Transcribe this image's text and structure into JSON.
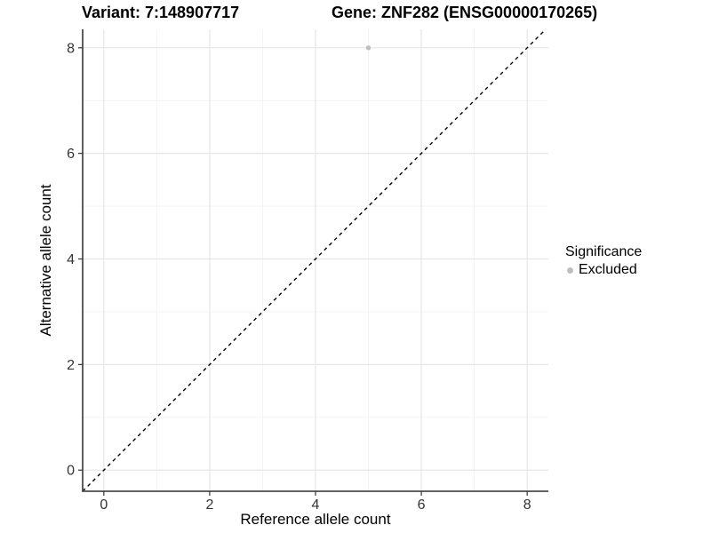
{
  "header": {
    "variant_title": "Variant: 7:148907717",
    "gene_title": "Gene: ZNF282 (ENSG00000170265)"
  },
  "legend": {
    "title": "Significance",
    "items": [
      {
        "label": "Excluded",
        "color": "#bfbfbf",
        "marker": "circle-icon"
      }
    ]
  },
  "chart_data": {
    "type": "scatter",
    "title": "",
    "xlabel": "Reference allele count",
    "ylabel": "Alternative allele count",
    "xlim": [
      -0.4,
      8.4
    ],
    "ylim": [
      -0.4,
      8.35
    ],
    "xticks": [
      0,
      2,
      4,
      6,
      8
    ],
    "yticks": [
      0,
      2,
      4,
      6,
      8
    ],
    "xminor": [
      1,
      3,
      5,
      7
    ],
    "yminor": [
      1,
      3,
      5,
      7
    ],
    "grid": "major+minor",
    "legend_position": "right",
    "series": [
      {
        "name": "Excluded",
        "color": "#bfbfbf",
        "points": [
          {
            "x": 5,
            "y": 8
          }
        ]
      }
    ],
    "reference_line": {
      "type": "identity",
      "style": "dashed",
      "color": "#000000"
    },
    "colors": {
      "background": "#ffffff",
      "major_grid": "#e6e6e6",
      "minor_grid": "#f1f1f1",
      "axis_line": "#4d4d4d",
      "tick_mark": "#333333",
      "tick_label": "#333333",
      "axis_title": "#000000",
      "title": "#000000"
    }
  }
}
